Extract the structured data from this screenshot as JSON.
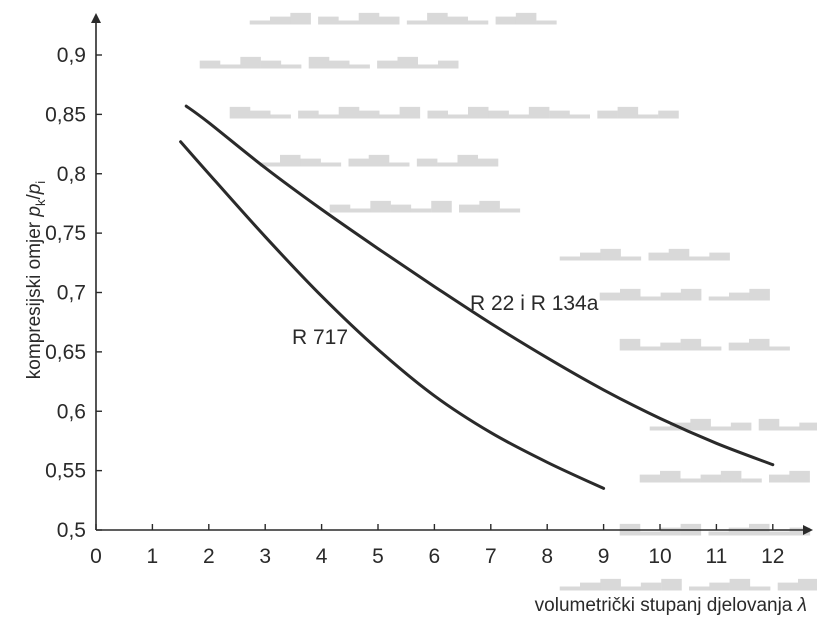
{
  "chart_data": {
    "type": "line",
    "ylabel": "kompresijski omjer p_k/p_i",
    "ylabel_main": "kompresijski omjer ",
    "ylabel_p1": "p",
    "ylabel_sub1": "k",
    "ylabel_slash": "/",
    "ylabel_p2": "p",
    "ylabel_sub2": "i",
    "xlabel_text": "volumetrički stupanj djelovanja ",
    "xlabel_symbol": "λ",
    "xlim": [
      0,
      12.5
    ],
    "ylim": [
      0.5,
      0.9
    ],
    "x_ticks": [
      0,
      1,
      2,
      3,
      4,
      5,
      6,
      7,
      8,
      9,
      10,
      11,
      12
    ],
    "x_tick_labels": [
      "0",
      "1",
      "2",
      "3",
      "4",
      "5",
      "6",
      "7",
      "8",
      "9",
      "10",
      "11",
      "12"
    ],
    "y_ticks": [
      0.5,
      0.55,
      0.6,
      0.65,
      0.7,
      0.75,
      0.8,
      0.85,
      0.9
    ],
    "y_tick_labels": [
      "0,5",
      "0,55",
      "0,6",
      "0,65",
      "0,7",
      "0,75",
      "0,8",
      "0,85",
      "0,9"
    ],
    "grid": false,
    "series": [
      {
        "name": "R 22 i R 134a",
        "color": "#2a2a2a",
        "points": [
          [
            1.6,
            0.857
          ],
          [
            2,
            0.843
          ],
          [
            3,
            0.805
          ],
          [
            4,
            0.77
          ],
          [
            5,
            0.737
          ],
          [
            6,
            0.705
          ],
          [
            7,
            0.674
          ],
          [
            8,
            0.645
          ],
          [
            9,
            0.618
          ],
          [
            10,
            0.594
          ],
          [
            11,
            0.573
          ],
          [
            12,
            0.555
          ]
        ]
      },
      {
        "name": "R 717",
        "color": "#2a2a2a",
        "points": [
          [
            1.5,
            0.827
          ],
          [
            2,
            0.8
          ],
          [
            3,
            0.747
          ],
          [
            4,
            0.697
          ],
          [
            5,
            0.652
          ],
          [
            6,
            0.613
          ],
          [
            7,
            0.582
          ],
          [
            8,
            0.557
          ],
          [
            9,
            0.535
          ]
        ]
      }
    ]
  }
}
